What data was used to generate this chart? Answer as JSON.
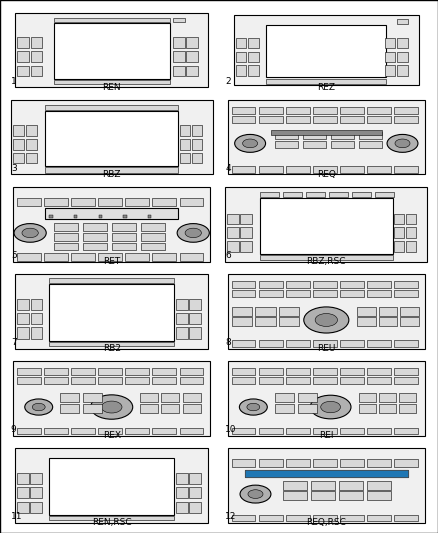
{
  "cells": [
    {
      "num": 1,
      "label": "REN"
    },
    {
      "num": 2,
      "label": "REZ"
    },
    {
      "num": 3,
      "label": "RBZ"
    },
    {
      "num": 4,
      "label": "REQ"
    },
    {
      "num": 5,
      "label": "RET"
    },
    {
      "num": 6,
      "label": "RBZ,RSC"
    },
    {
      "num": 7,
      "label": "RB2"
    },
    {
      "num": 8,
      "label": "REU"
    },
    {
      "num": 9,
      "label": "REX"
    },
    {
      "num": 10,
      "label": "REI"
    },
    {
      "num": 11,
      "label": "REN,RSC"
    },
    {
      "num": 12,
      "label": "REQ,RSC"
    }
  ],
  "bg_color": "#ffffff",
  "lw_main": 0.8,
  "lw_detail": 0.4,
  "ec": "#000000",
  "fc_body": "#f0f0f0",
  "fc_btn": "#d8d8d8",
  "fc_screen": "#ffffff",
  "fc_knob": "#b0b0b0",
  "label_fontsize": 6.5,
  "num_fontsize": 6.5
}
